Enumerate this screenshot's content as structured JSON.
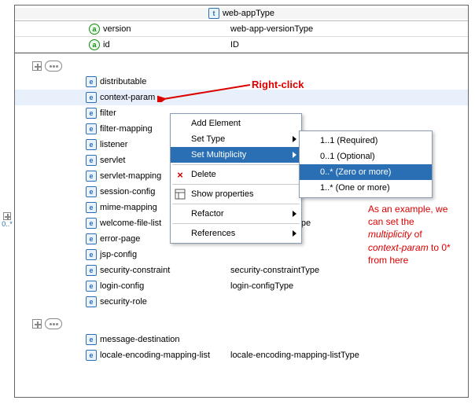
{
  "title": "web-appType",
  "attributes": [
    {
      "name": "version",
      "type": "web-app-versionType"
    },
    {
      "name": "id",
      "type": "ID"
    }
  ],
  "group1": [
    {
      "name": "distributable",
      "type": ""
    },
    {
      "name": "context-param",
      "type": "",
      "selected": true
    },
    {
      "name": "filter",
      "type": ""
    },
    {
      "name": "filter-mapping",
      "type": ""
    },
    {
      "name": "listener",
      "type": ""
    },
    {
      "name": "servlet",
      "type": ""
    },
    {
      "name": "servlet-mapping",
      "type": ""
    },
    {
      "name": "session-config",
      "type": ""
    },
    {
      "name": "mime-mapping",
      "type": ""
    },
    {
      "name": "welcome-file-list",
      "type": "welcome-file-listType"
    },
    {
      "name": "error-page",
      "type": "error-pageType"
    },
    {
      "name": "jsp-config",
      "type": ""
    },
    {
      "name": "security-constraint",
      "type": "security-constraintType"
    },
    {
      "name": "login-config",
      "type": "login-configType"
    },
    {
      "name": "security-role",
      "type": ""
    }
  ],
  "group2": [
    {
      "name": "message-destination",
      "type": ""
    },
    {
      "name": "locale-encoding-mapping-list",
      "type": "locale-encoding-mapping-listType"
    }
  ],
  "contextMenu": {
    "addElement": "Add Element",
    "setType": "Set Type",
    "setMultiplicity": "Set Multiplicity",
    "delete": "Delete",
    "showProps": "Show properties",
    "refactor": "Refactor",
    "references": "References"
  },
  "multiplicityMenu": {
    "opt1": "1..1 (Required)",
    "opt2": "0..1 (Optional)",
    "opt3": "0..* (Zero or more)",
    "opt4": "1..* (One or more)"
  },
  "annotation": {
    "rightClick": "Right-click",
    "line1": "As an example, we",
    "line2": "can set the",
    "line3a": "multiplicity",
    "line3b": " of",
    "line4a": "context-param",
    "line4b": " to 0*",
    "line5": "from here"
  },
  "sideBadge": "0..*",
  "colors": {
    "highlight": "#2a6fb3",
    "annotation": "#d00000"
  }
}
